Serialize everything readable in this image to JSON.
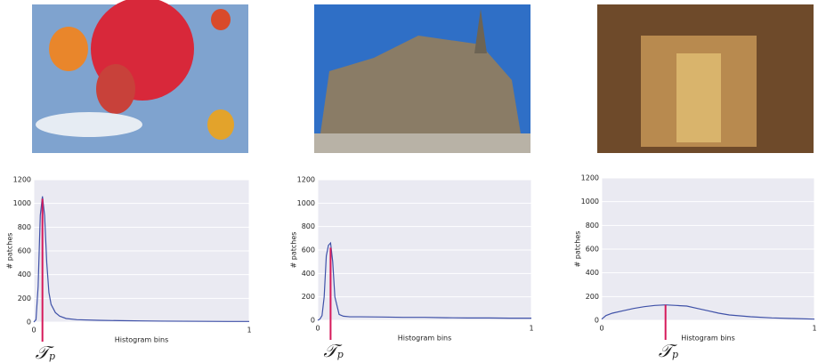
{
  "chart_data": [
    {
      "type": "line",
      "x_label": "Histogram bins",
      "y_label": "# patches",
      "xlim": [
        0,
        1
      ],
      "xticks": [
        0,
        1
      ],
      "ylim": [
        0,
        1200
      ],
      "yticks": [
        0,
        200,
        400,
        600,
        800,
        1000,
        1200
      ],
      "grid": true,
      "series": [
        {
          "color": "#3f51a8",
          "x": [
            0,
            0.01,
            0.02,
            0.03,
            0.04,
            0.05,
            0.06,
            0.07,
            0.08,
            0.1,
            0.12,
            0.15,
            0.2,
            0.3,
            0.4,
            0.5,
            0.6,
            0.7,
            0.8,
            0.9,
            1.0
          ],
          "values": [
            0,
            20,
            300,
            900,
            1060,
            900,
            500,
            250,
            150,
            80,
            50,
            30,
            20,
            15,
            12,
            10,
            8,
            7,
            6,
            5,
            5
          ]
        }
      ],
      "threshold": {
        "x": 0.04,
        "y": 1040,
        "color": "#d6195a",
        "label": "𝒯",
        "subscript": "p"
      }
    },
    {
      "type": "line",
      "x_label": "Histogram bins",
      "y_label": "# patches",
      "xlim": [
        0,
        1
      ],
      "xticks": [
        0,
        1
      ],
      "ylim": [
        0,
        1200
      ],
      "yticks": [
        0,
        200,
        400,
        600,
        800,
        1000,
        1200
      ],
      "grid": true,
      "series": [
        {
          "color": "#3f51a8",
          "x": [
            0,
            0.01,
            0.02,
            0.03,
            0.04,
            0.05,
            0.06,
            0.07,
            0.08,
            0.1,
            0.12,
            0.15,
            0.2,
            0.3,
            0.4,
            0.5,
            0.6,
            0.7,
            0.8,
            0.9,
            1.0
          ],
          "values": [
            0,
            10,
            40,
            200,
            550,
            640,
            660,
            500,
            200,
            50,
            35,
            30,
            30,
            28,
            25,
            25,
            22,
            20,
            20,
            18,
            18
          ]
        }
      ],
      "threshold": {
        "x": 0.06,
        "y": 620,
        "color": "#d6195a",
        "label": "𝒯",
        "subscript": "p"
      }
    },
    {
      "type": "line",
      "x_label": "Histogram bins",
      "y_label": "# patches",
      "xlim": [
        0,
        1
      ],
      "xticks": [
        0,
        1
      ],
      "ylim": [
        0,
        1200
      ],
      "yticks": [
        0,
        200,
        400,
        600,
        800,
        1000,
        1200
      ],
      "grid": true,
      "series": [
        {
          "color": "#3f51a8",
          "x": [
            0,
            0.02,
            0.05,
            0.1,
            0.15,
            0.2,
            0.25,
            0.3,
            0.35,
            0.4,
            0.45,
            0.5,
            0.55,
            0.6,
            0.7,
            0.8,
            0.9,
            1.0
          ],
          "values": [
            10,
            40,
            60,
            80,
            100,
            115,
            125,
            130,
            125,
            120,
            100,
            80,
            60,
            45,
            30,
            20,
            15,
            10
          ]
        }
      ],
      "threshold": {
        "x": 0.3,
        "y": 130,
        "color": "#d6195a",
        "label": "𝒯",
        "subscript": "p"
      }
    }
  ]
}
